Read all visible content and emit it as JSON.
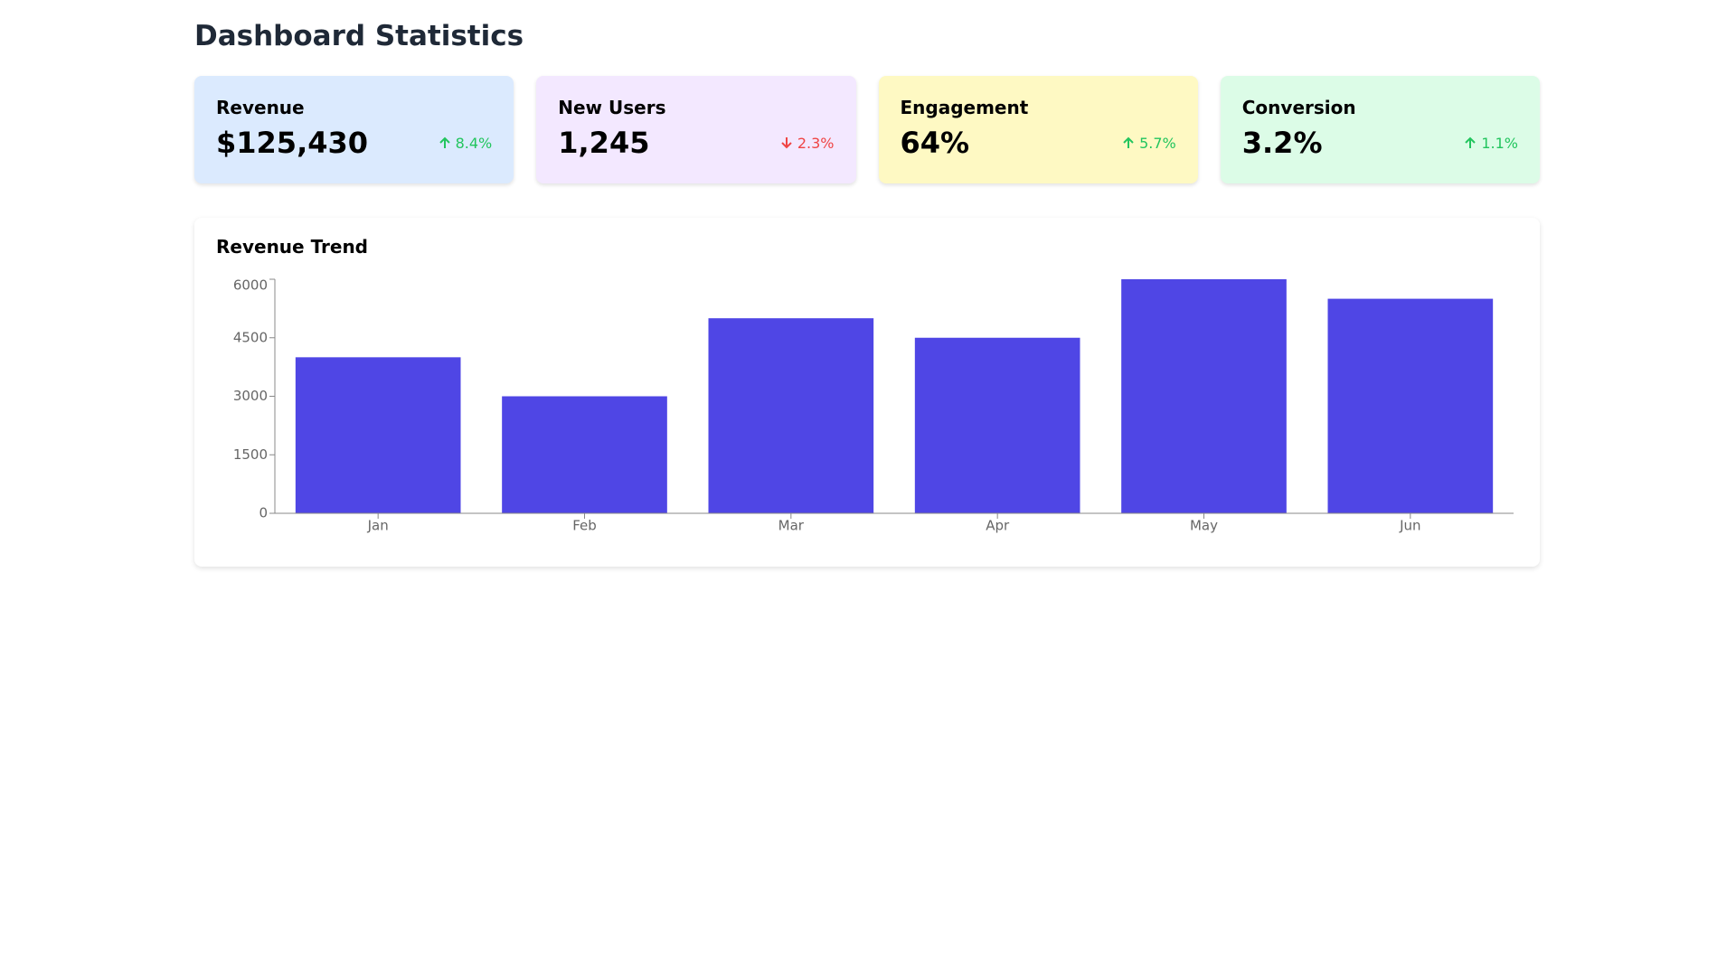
{
  "header": {
    "title": "Dashboard Statistics"
  },
  "cards": [
    {
      "label": "Revenue",
      "value": "$125,430",
      "change": "8.4%",
      "trend": "up",
      "color": "#dbeafe"
    },
    {
      "label": "New Users",
      "value": "1,245",
      "change": "2.3%",
      "trend": "down",
      "color": "#f3e8ff"
    },
    {
      "label": "Engagement",
      "value": "64%",
      "change": "5.7%",
      "trend": "up",
      "color": "#fef9c3"
    },
    {
      "label": "Conversion",
      "value": "3.2%",
      "change": "1.1%",
      "trend": "up",
      "color": "#dcfce7"
    }
  ],
  "chart_data": {
    "type": "bar",
    "title": "Revenue Trend",
    "categories": [
      "Jan",
      "Feb",
      "Mar",
      "Apr",
      "May",
      "Jun"
    ],
    "values": [
      4000,
      3000,
      5000,
      4500,
      6000,
      5500
    ],
    "color": "#4f46e5",
    "ylim": [
      0,
      6000
    ],
    "yticks": [
      0,
      1500,
      3000,
      4500,
      6000
    ]
  }
}
